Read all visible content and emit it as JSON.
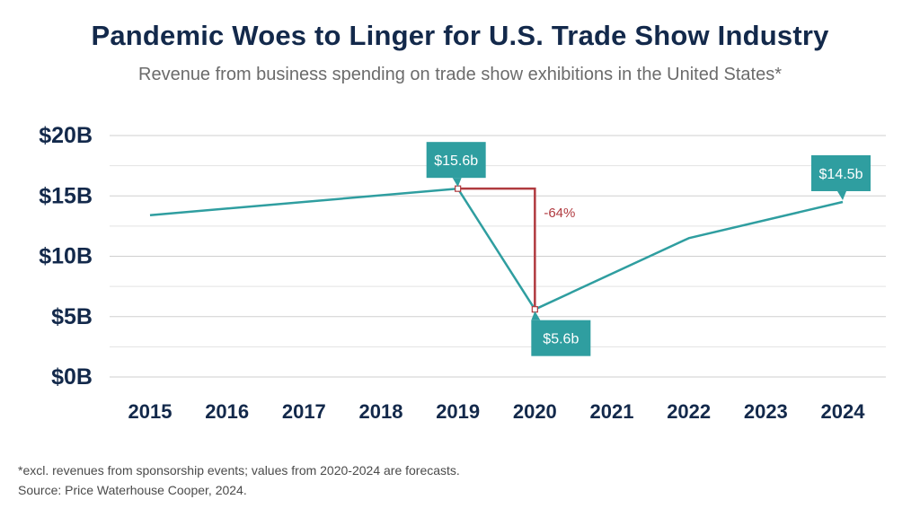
{
  "chart_data": {
    "type": "line",
    "title": "Pandemic Woes to Linger for U.S. Trade Show Industry",
    "subtitle": "Revenue from business spending on trade show exhibitions in the United States*",
    "categories": [
      "2015",
      "2016",
      "2017",
      "2018",
      "2019",
      "2020",
      "2021",
      "2022",
      "2023",
      "2024"
    ],
    "series": [
      {
        "name": "Revenue",
        "color": "#2f9ea0",
        "x": [
          2015,
          2019,
          2020,
          2022,
          2024
        ],
        "values": [
          13.4,
          15.6,
          5.6,
          11.5,
          14.5
        ]
      }
    ],
    "yticks": [
      {
        "value": 0,
        "label": "$0B"
      },
      {
        "value": 5,
        "label": "$5B"
      },
      {
        "value": 10,
        "label": "$10B"
      },
      {
        "value": 15,
        "label": "$15B"
      },
      {
        "value": 20,
        "label": "$20B"
      }
    ],
    "ylim": [
      0,
      20
    ],
    "grid": true,
    "annotations": [
      {
        "label": "$15.6b",
        "x": 2019,
        "y": 15.6,
        "placement": "above"
      },
      {
        "label": "$5.6b",
        "x": 2020,
        "y": 5.6,
        "placement": "below"
      },
      {
        "label": "$14.5b",
        "x": 2024,
        "y": 14.5,
        "placement": "above"
      }
    ],
    "change": {
      "label": "-64%",
      "from_x": 2019,
      "from_y": 15.6,
      "to_x": 2020,
      "to_y": 5.6,
      "color": "#b03a3f"
    },
    "callout_color": "#2f9ea0"
  },
  "footnote": "*excl. revenues from sponsorship events; values from 2020-2024 are forecasts.",
  "source": "Source: Price Waterhouse Cooper, 2024."
}
